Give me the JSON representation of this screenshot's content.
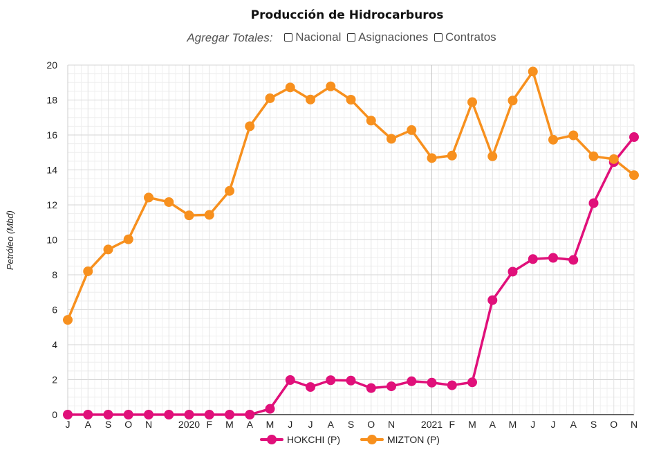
{
  "header": {
    "title": "Producción de Hidrocarburos",
    "aggregate_label": "Agregar Totales:",
    "checkboxes": [
      {
        "label": "Nacional",
        "checked": false
      },
      {
        "label": "Asignaciones",
        "checked": false
      },
      {
        "label": "Contratos",
        "checked": false
      }
    ]
  },
  "chart_data": {
    "type": "line",
    "title": "Producción de Hidrocarburos",
    "xlabel": "",
    "ylabel": "Petróleo (Mbd)",
    "ylim": [
      0,
      20
    ],
    "yticks": [
      0,
      2,
      4,
      6,
      8,
      10,
      12,
      14,
      16,
      18,
      20
    ],
    "grid": true,
    "legend_position": "bottom",
    "categories": [
      "J",
      "A",
      "S",
      "O",
      "N",
      "",
      "2020",
      "F",
      "M",
      "A",
      "M",
      "J",
      "J",
      "A",
      "S",
      "O",
      "N",
      "",
      "2021",
      "F",
      "M",
      "A",
      "M",
      "J",
      "J",
      "A",
      "S",
      "O",
      "N"
    ],
    "series": [
      {
        "name": "HOKCHI (P)",
        "color": "#e0107a",
        "values": [
          0,
          0,
          0,
          0,
          0,
          0,
          0,
          0,
          0,
          0,
          0.33,
          1.98,
          1.58,
          1.97,
          1.95,
          1.52,
          1.62,
          1.91,
          1.83,
          1.68,
          1.85,
          6.55,
          8.18,
          8.9,
          8.97,
          8.85,
          12.1,
          14.45,
          15.88
        ]
      },
      {
        "name": "MIZTON (P)",
        "color": "#f7901e",
        "values": [
          5.42,
          8.2,
          9.45,
          10.03,
          12.42,
          12.16,
          11.4,
          11.43,
          12.8,
          16.5,
          18.1,
          18.72,
          18.03,
          18.78,
          18.02,
          16.82,
          15.78,
          16.28,
          14.68,
          14.82,
          17.88,
          14.78,
          17.97,
          19.63,
          15.73,
          15.98,
          14.78,
          14.62,
          13.7
        ]
      }
    ]
  }
}
